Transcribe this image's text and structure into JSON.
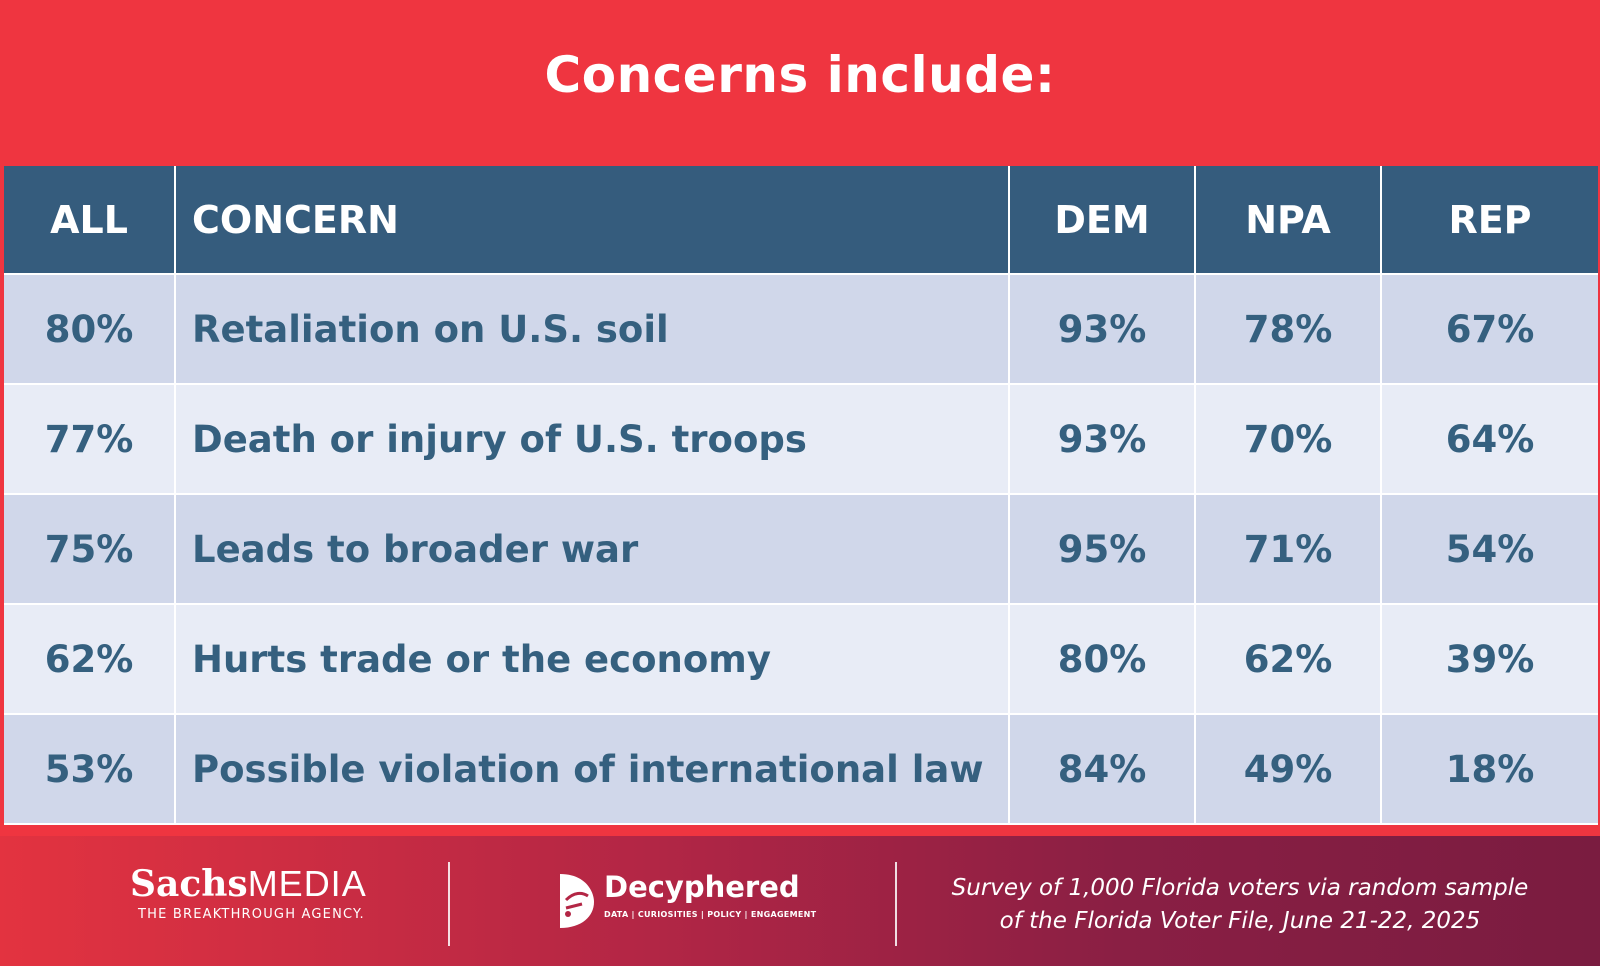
{
  "title": "Concerns include:",
  "chart_data": {
    "type": "table",
    "title": "Concerns include:",
    "columns": [
      "ALL",
      "CONCERN",
      "DEM",
      "NPA",
      "REP"
    ],
    "rows": [
      {
        "all": "80%",
        "concern": "Retaliation on U.S. soil",
        "dem": "93%",
        "npa": "78%",
        "rep": "67%"
      },
      {
        "all": "77%",
        "concern": "Death or injury of U.S. troops",
        "dem": "93%",
        "npa": "70%",
        "rep": "64%"
      },
      {
        "all": "75%",
        "concern": "Leads to broader war",
        "dem": "95%",
        "npa": "71%",
        "rep": "54%"
      },
      {
        "all": "62%",
        "concern": "Hurts trade or the economy",
        "dem": "80%",
        "npa": "62%",
        "rep": "39%"
      },
      {
        "all": "53%",
        "concern": "Possible violation of international law",
        "dem": "84%",
        "npa": "49%",
        "rep": "18%"
      }
    ]
  },
  "footer": {
    "sachs_bold": "Sachs",
    "sachs_light": "MEDIA",
    "sachs_tagline": "THE BREAKTHROUGH AGENCY.",
    "decyphered_name": "Decyphered",
    "decyphered_tagline": "DATA | CURIOSITIES | POLICY | ENGAGEMENT",
    "survey_line1": "Survey of 1,000 Florida voters via random sample",
    "survey_line2": "of the Florida Voter File, June 21-22, 2025"
  },
  "colors": {
    "background": "#ef3540",
    "header": "#355c7d",
    "row_odd": "#d0d7ea",
    "row_even": "#e8ecf6",
    "text": "#35607f"
  }
}
